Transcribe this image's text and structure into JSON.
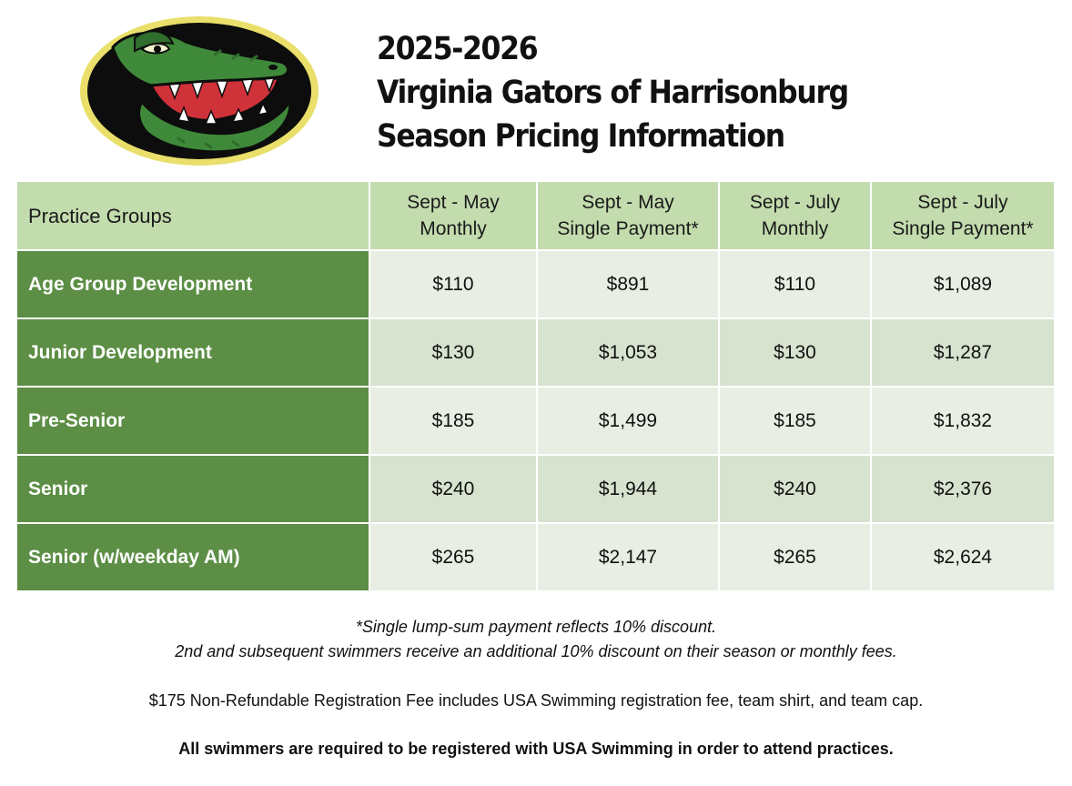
{
  "title": {
    "line1": "2025-2026",
    "line2": "Virginia Gators of Harrisonburg",
    "line3": "Season Pricing Information"
  },
  "logo": {
    "icon": "gator-head-logo",
    "colors": {
      "outer_ring": "#e9df6a",
      "background": "#0d0d0d",
      "gator_green": "#3f8a3a",
      "mouth_red": "#d0323a"
    }
  },
  "table": {
    "headers": [
      {
        "line1": "Practice Groups",
        "line2": ""
      },
      {
        "line1": "Sept - May",
        "line2": "Monthly"
      },
      {
        "line1": "Sept - May",
        "line2": "Single Payment*"
      },
      {
        "line1": "Sept - July",
        "line2": "Monthly"
      },
      {
        "line1": "Sept - July",
        "line2": "Single Payment*"
      }
    ],
    "rows": [
      {
        "group": "Age Group Development",
        "may_monthly": "$110",
        "may_single": "$891",
        "july_monthly": "$110",
        "july_single": "$1,089"
      },
      {
        "group": "Junior Development",
        "may_monthly": "$130",
        "may_single": "$1,053",
        "july_monthly": "$130",
        "july_single": "$1,287"
      },
      {
        "group": "Pre-Senior",
        "may_monthly": "$185",
        "may_single": "$1,499",
        "july_monthly": "$185",
        "july_single": "$1,832"
      },
      {
        "group": "Senior",
        "may_monthly": "$240",
        "may_single": "$1,944",
        "july_monthly": "$240",
        "july_single": "$2,376"
      },
      {
        "group": "Senior (w/weekday AM)",
        "may_monthly": "$265",
        "may_single": "$2,147",
        "july_monthly": "$265",
        "july_single": "$2,624"
      }
    ],
    "colors": {
      "header_bg": "#c3dcae",
      "label_bg": "#5c8e45",
      "cell_light": "#e8eee3",
      "cell_dark": "#d7e3cf"
    }
  },
  "notes": {
    "discount_line1": "*Single lump-sum payment reflects 10% discount.",
    "discount_line2": "2nd and subsequent swimmers receive an additional 10% discount on their season or monthly fees.",
    "registration_fee": "$175 Non-Refundable Registration Fee includes USA Swimming registration fee, team shirt, and team cap.",
    "requirement": "All swimmers are required to be registered with USA Swimming in order to attend practices."
  }
}
